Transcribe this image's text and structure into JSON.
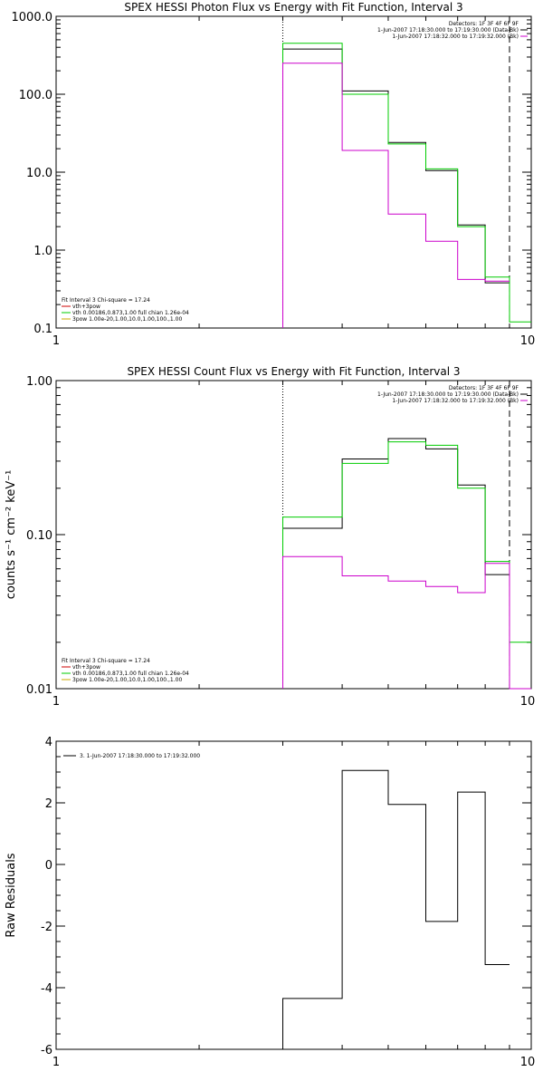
{
  "chart_data": [
    {
      "type": "line",
      "title": "SPEX HESSI Photon Flux vs Energy with Fit Function, Interval 3",
      "ylabel": "",
      "xscale": "log",
      "yscale": "log",
      "xlim": [
        1,
        10
      ],
      "ylim": [
        0.1,
        1000
      ],
      "x_ticks": [
        "1",
        "10"
      ],
      "y_ticks": [
        {
          "value": 1000,
          "label": "1000.0"
        },
        {
          "value": 100,
          "label": "100.0"
        },
        {
          "value": 10,
          "label": "10.0"
        },
        {
          "value": 1,
          "label": "1.0"
        },
        {
          "value": 0.1,
          "label": "0.1"
        }
      ],
      "bin_edges": [
        3,
        4,
        5,
        6,
        7,
        8,
        9,
        10
      ],
      "vlines": [
        {
          "x": 3,
          "style": "dotted"
        },
        {
          "x": 9,
          "style": "dashed"
        }
      ],
      "legend_top": [
        "Detectors: 1F 3F 4F 6F 9F",
        "1-Jun-2007 17:18:30.000 to 17:19:30.000 (Data-Bk)",
        "1-Jun-2007 17:18:32.000 to 17:19:32.000 (Bk)"
      ],
      "legend_top_colors": [
        "",
        "#000000",
        "#cc00cc"
      ],
      "legend_bottom": [
        "Fit Interval 3   Chi-square = 17.24",
        "vth+3pow",
        "vth 0.00186,0.873,1.00   full chian 1.26e-04",
        "3pow 1.00e-20,1.00,10.0,1.00,100.,1.00"
      ],
      "legend_bottom_colors": [
        "",
        "#cc0000",
        "#00cc00",
        "#ccaa00"
      ],
      "series": [
        {
          "color": "#000000",
          "values": [
            380,
            110,
            24,
            10.5,
            2.1,
            0.38,
            null
          ]
        },
        {
          "color": "#00cc00",
          "values": [
            450,
            100,
            23,
            11,
            2.0,
            0.45,
            0.12
          ]
        },
        {
          "color": "#cc00cc",
          "values": [
            250,
            19,
            2.9,
            1.3,
            0.42,
            0.4,
            null
          ]
        }
      ]
    },
    {
      "type": "line",
      "title": "SPEX HESSI Count Flux vs Energy with Fit Function, Interval 3",
      "ylabel": "counts s⁻¹ cm⁻² keV⁻¹",
      "xscale": "log",
      "yscale": "log",
      "xlim": [
        1,
        10
      ],
      "ylim": [
        0.01,
        1
      ],
      "x_ticks": [
        "1",
        "10"
      ],
      "y_ticks": [
        {
          "value": 1,
          "label": "1.00"
        },
        {
          "value": 0.1,
          "label": "0.10"
        },
        {
          "value": 0.01,
          "label": "0.01"
        }
      ],
      "bin_edges": [
        3,
        4,
        5,
        6,
        7,
        8,
        9,
        10
      ],
      "vlines": [
        {
          "x": 3,
          "style": "dotted"
        },
        {
          "x": 9,
          "style": "dashed"
        }
      ],
      "legend_top": [
        "Detectors: 1F 3F 4F 6F 9F",
        "1-Jun-2007 17:18:30.000 to 17:19:30.000 (Data-Bk)",
        "1-Jun-2007 17:18:32.000 to 17:19:32.000 (Bk)"
      ],
      "legend_top_colors": [
        "",
        "#000000",
        "#cc00cc"
      ],
      "legend_bottom": [
        "Fit Interval 3   Chi-square = 17.24",
        "vth+3pow",
        "vth 0.00186,0.873,1.00   full chian 1.26e-04",
        "3pow 1.00e-20,1.00,10.0,1.00,100.,1.00"
      ],
      "legend_bottom_colors": [
        "",
        "#cc0000",
        "#00cc00",
        "#ccaa00"
      ],
      "series": [
        {
          "color": "#000000",
          "values": [
            0.11,
            0.31,
            0.42,
            0.36,
            0.21,
            0.055,
            null
          ]
        },
        {
          "color": "#00cc00",
          "values": [
            0.13,
            0.29,
            0.4,
            0.38,
            0.2,
            0.067,
            0.02
          ]
        },
        {
          "color": "#cc00cc",
          "values": [
            0.072,
            0.054,
            0.05,
            0.046,
            0.042,
            0.065,
            0.01
          ]
        }
      ]
    },
    {
      "type": "line",
      "title": "",
      "ylabel": "Raw Residuals",
      "xscale": "log",
      "yscale": "linear",
      "xlim": [
        1,
        10
      ],
      "ylim": [
        -6,
        4
      ],
      "x_ticks": [
        "1",
        "10"
      ],
      "y_ticks": [
        {
          "value": 4,
          "label": "4"
        },
        {
          "value": 2,
          "label": "2"
        },
        {
          "value": 0,
          "label": "0"
        },
        {
          "value": -2,
          "label": "-2"
        },
        {
          "value": -4,
          "label": "-4"
        },
        {
          "value": -6,
          "label": "-6"
        }
      ],
      "bin_edges": [
        3,
        4,
        5,
        6,
        7,
        8,
        9
      ],
      "vlines": [],
      "legend_top": [],
      "legend_top_colors": [],
      "legend_bottom": [],
      "legend_bottom_colors": [],
      "legend_inline": "3.  1-Jun-2007 17:18:30.000 to 17:19:32.000",
      "series": [
        {
          "color": "#000000",
          "values": [
            -4.35,
            3.05,
            1.95,
            -1.85,
            2.35,
            -3.25
          ]
        }
      ]
    }
  ]
}
